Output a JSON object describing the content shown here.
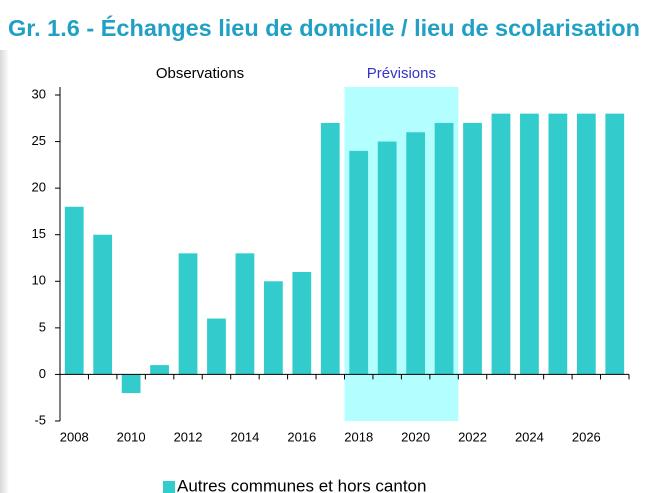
{
  "chart_data": {
    "type": "bar",
    "title": "Gr. 1.6 - Échanges lieu de domicile / lieu de scolarisation",
    "annotations": [
      {
        "text": "Observations"
      },
      {
        "text": "Prévisions"
      }
    ],
    "categories": [
      "2008",
      null,
      "2010",
      null,
      "2012",
      null,
      "2014",
      null,
      "2016",
      null,
      "2018",
      null,
      "2020",
      null,
      "2022",
      null,
      "2024",
      null,
      "2026",
      null
    ],
    "series": [
      {
        "name": "Autres communes et hors canton",
        "color": "#33cccc",
        "values": [
          18,
          15,
          -2,
          1,
          13,
          6,
          13,
          10,
          11,
          27,
          24,
          25,
          26,
          27,
          27,
          28,
          28,
          28,
          28,
          28
        ]
      }
    ],
    "ylim": [
      -5,
      30
    ],
    "yticks": [
      -5,
      0,
      5,
      10,
      15,
      20,
      25,
      30
    ],
    "grid": false
  }
}
